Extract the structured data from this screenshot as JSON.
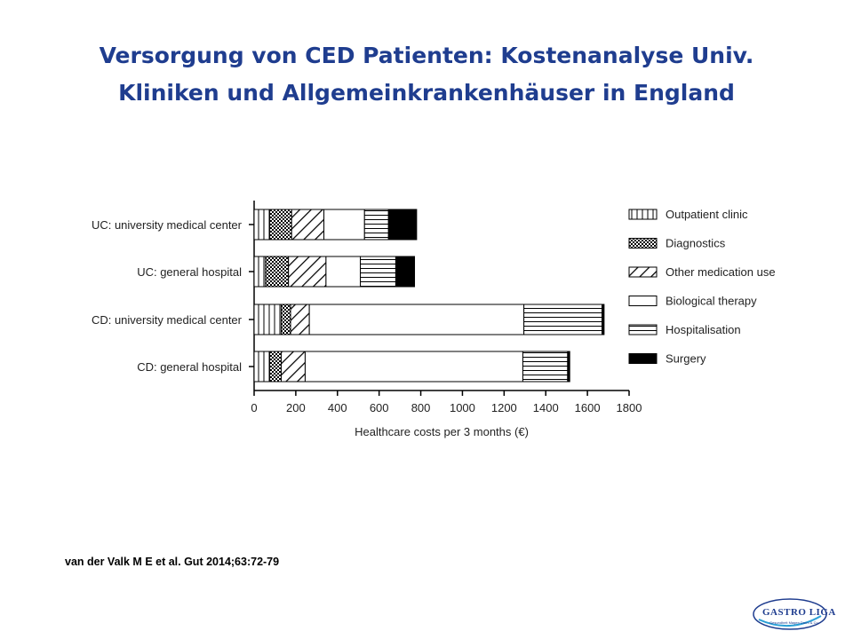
{
  "slide": {
    "title_line1": "Versorgung von CED Patienten: Kostenanalyse Univ.",
    "title_line2": "Kliniken und Allgemeinkrankenhäuser in England",
    "citation": "van der Valk M E et al. Gut 2014;63:72-79",
    "logo_text": "GASTRO LIGA",
    "logo_subtext": "Gesundheit Magen Darm & Co.",
    "title_color": "#1f3d8f"
  },
  "chart_data": {
    "type": "bar",
    "orientation": "horizontal",
    "stacked": true,
    "title": "",
    "xlabel": "Healthcare costs per 3 months (€)",
    "ylabel": "",
    "xlim": [
      0,
      1800
    ],
    "xticks": [
      0,
      200,
      400,
      600,
      800,
      1000,
      1200,
      1400,
      1600,
      1800
    ],
    "grid": false,
    "legend_position": "right",
    "categories": [
      "UC: university medical center",
      "UC: general hospital",
      "CD: university medical center",
      "CD: general hospital"
    ],
    "series": [
      {
        "name": "Outpatient clinic",
        "pattern": "vertical-lines",
        "values": [
          75,
          55,
          130,
          75
        ]
      },
      {
        "name": "Diagnostics",
        "pattern": "crosshatch",
        "values": [
          105,
          110,
          45,
          55
        ]
      },
      {
        "name": "Other medication use",
        "pattern": "diagonal-lines",
        "values": [
          155,
          180,
          90,
          115
        ]
      },
      {
        "name": "Biological therapy",
        "pattern": "blank",
        "values": [
          195,
          165,
          1030,
          1045
        ]
      },
      {
        "name": "Hospitalisation",
        "pattern": "horizontal-lines",
        "values": [
          115,
          170,
          375,
          215
        ]
      },
      {
        "name": "Surgery",
        "pattern": "solid",
        "values": [
          135,
          90,
          10,
          10
        ]
      }
    ]
  }
}
